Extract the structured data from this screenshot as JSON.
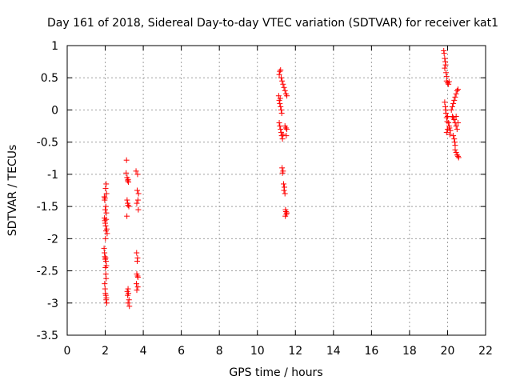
{
  "chart_data": {
    "type": "scatter",
    "title": "Day 161 of 2018, Sidereal Day-to-day VTEC variation (SDTVAR) for receiver kat1",
    "xlabel": "GPS time / hours",
    "ylabel": "SDTVAR / TECUs",
    "xlim": [
      0,
      22
    ],
    "ylim": [
      -3.5,
      1
    ],
    "xticks": [
      0,
      2,
      4,
      6,
      8,
      10,
      12,
      14,
      16,
      18,
      20,
      22
    ],
    "xtick_labels": [
      "0",
      "2",
      "4",
      "6",
      "8",
      "10",
      "12",
      "14",
      "16",
      "18",
      "20",
      "22"
    ],
    "yticks": [
      1,
      0.5,
      0,
      -0.5,
      -1,
      -1.5,
      -2,
      -2.5,
      -3,
      -3.5
    ],
    "ytick_labels": [
      "1",
      "0.5",
      "0",
      "-0.5",
      "-1",
      "-1.5",
      "-2",
      "-2.5",
      "-3",
      "-3.5"
    ],
    "grid": true,
    "marker": "+",
    "color": "#ff0000",
    "series": [
      {
        "name": "kat1",
        "points": [
          [
            1.95,
            -1.35
          ],
          [
            1.97,
            -1.4
          ],
          [
            1.99,
            -1.37
          ],
          [
            2.0,
            -1.55
          ],
          [
            2.02,
            -1.22
          ],
          [
            2.05,
            -1.15
          ],
          [
            2.07,
            -1.3
          ],
          [
            2.03,
            -1.5
          ],
          [
            2.06,
            -1.6
          ],
          [
            1.96,
            -1.68
          ],
          [
            1.98,
            -1.72
          ],
          [
            2.0,
            -1.76
          ],
          [
            2.02,
            -1.8
          ],
          [
            2.05,
            -1.7
          ],
          [
            2.08,
            -1.85
          ],
          [
            2.1,
            -1.92
          ],
          [
            2.04,
            -1.88
          ],
          [
            2.01,
            -2.0
          ],
          [
            1.94,
            -2.15
          ],
          [
            1.96,
            -2.22
          ],
          [
            1.98,
            -2.28
          ],
          [
            2.0,
            -2.32
          ],
          [
            2.02,
            -2.3
          ],
          [
            2.04,
            -2.35
          ],
          [
            2.06,
            -2.42
          ],
          [
            2.01,
            -2.45
          ],
          [
            2.03,
            -2.55
          ],
          [
            2.05,
            -2.62
          ],
          [
            1.97,
            -2.7
          ],
          [
            1.99,
            -2.78
          ],
          [
            2.01,
            -2.85
          ],
          [
            2.03,
            -2.88
          ],
          [
            2.05,
            -2.95
          ],
          [
            2.08,
            -3.0
          ],
          [
            2.06,
            -2.92
          ],
          [
            3.12,
            -0.78
          ],
          [
            3.1,
            -0.98
          ],
          [
            3.15,
            -1.05
          ],
          [
            3.18,
            -1.1
          ],
          [
            3.22,
            -1.12
          ],
          [
            3.2,
            -1.08
          ],
          [
            3.15,
            -1.4
          ],
          [
            3.18,
            -1.45
          ],
          [
            3.2,
            -1.48
          ],
          [
            3.24,
            -1.5
          ],
          [
            3.14,
            -1.65
          ],
          [
            3.2,
            -2.78
          ],
          [
            3.22,
            -2.85
          ],
          [
            3.18,
            -2.88
          ],
          [
            3.25,
            -2.95
          ],
          [
            3.2,
            -3.0
          ],
          [
            3.27,
            -3.05
          ],
          [
            3.16,
            -2.82
          ],
          [
            3.62,
            -0.95
          ],
          [
            3.7,
            -1.0
          ],
          [
            3.68,
            -1.25
          ],
          [
            3.75,
            -1.3
          ],
          [
            3.72,
            -1.4
          ],
          [
            3.66,
            -1.45
          ],
          [
            3.74,
            -1.55
          ],
          [
            3.65,
            -2.22
          ],
          [
            3.7,
            -2.3
          ],
          [
            3.68,
            -2.35
          ],
          [
            3.66,
            -2.55
          ],
          [
            3.72,
            -2.6
          ],
          [
            3.7,
            -2.58
          ],
          [
            3.64,
            -2.7
          ],
          [
            3.71,
            -2.75
          ],
          [
            3.66,
            -2.8
          ],
          [
            11.15,
            0.55
          ],
          [
            11.18,
            0.6
          ],
          [
            11.22,
            0.62
          ],
          [
            11.25,
            0.5
          ],
          [
            11.3,
            0.45
          ],
          [
            11.35,
            0.4
          ],
          [
            11.4,
            0.35
          ],
          [
            11.45,
            0.3
          ],
          [
            11.5,
            0.25
          ],
          [
            11.55,
            0.22
          ],
          [
            11.12,
            0.22
          ],
          [
            11.15,
            0.15
          ],
          [
            11.18,
            0.1
          ],
          [
            11.22,
            0.05
          ],
          [
            11.25,
            0.0
          ],
          [
            11.28,
            -0.05
          ],
          [
            11.2,
            0.18
          ],
          [
            11.15,
            -0.2
          ],
          [
            11.18,
            -0.25
          ],
          [
            11.22,
            -0.3
          ],
          [
            11.25,
            -0.35
          ],
          [
            11.28,
            -0.4
          ],
          [
            11.32,
            -0.45
          ],
          [
            11.35,
            -0.38
          ],
          [
            11.45,
            -0.25
          ],
          [
            11.5,
            -0.28
          ],
          [
            11.55,
            -0.3
          ],
          [
            11.52,
            -0.4
          ],
          [
            11.3,
            -0.9
          ],
          [
            11.35,
            -0.95
          ],
          [
            11.32,
            -0.98
          ],
          [
            11.38,
            -1.15
          ],
          [
            11.42,
            -1.2
          ],
          [
            11.4,
            -1.25
          ],
          [
            11.45,
            -1.3
          ],
          [
            11.48,
            -1.55
          ],
          [
            11.5,
            -1.58
          ],
          [
            11.52,
            -1.62
          ],
          [
            11.55,
            -1.6
          ],
          [
            11.47,
            -1.65
          ],
          [
            19.8,
            0.92
          ],
          [
            19.82,
            0.88
          ],
          [
            19.85,
            0.8
          ],
          [
            19.88,
            0.75
          ],
          [
            19.9,
            0.7
          ],
          [
            19.85,
            0.65
          ],
          [
            19.92,
            0.58
          ],
          [
            19.95,
            0.52
          ],
          [
            19.95,
            0.45
          ],
          [
            20.0,
            0.42
          ],
          [
            20.05,
            0.4
          ],
          [
            20.08,
            0.44
          ],
          [
            19.85,
            0.12
          ],
          [
            19.88,
            0.05
          ],
          [
            19.9,
            0.0
          ],
          [
            19.92,
            -0.05
          ],
          [
            19.95,
            -0.12
          ],
          [
            19.98,
            -0.18
          ],
          [
            20.0,
            -0.1
          ],
          [
            20.05,
            -0.2
          ],
          [
            20.1,
            -0.28
          ],
          [
            20.15,
            -0.32
          ],
          [
            20.12,
            -0.38
          ],
          [
            20.08,
            -0.25
          ],
          [
            20.0,
            -0.3
          ],
          [
            19.95,
            -0.35
          ],
          [
            20.2,
            0.0
          ],
          [
            20.25,
            0.05
          ],
          [
            20.3,
            0.1
          ],
          [
            20.35,
            0.15
          ],
          [
            20.4,
            0.2
          ],
          [
            20.45,
            0.25
          ],
          [
            20.5,
            0.3
          ],
          [
            20.55,
            0.32
          ],
          [
            20.25,
            -0.1
          ],
          [
            20.3,
            -0.12
          ],
          [
            20.35,
            -0.15
          ],
          [
            20.4,
            -0.2
          ],
          [
            20.45,
            -0.25
          ],
          [
            20.5,
            -0.3
          ],
          [
            20.55,
            -0.2
          ],
          [
            20.45,
            -0.1
          ],
          [
            20.35,
            -0.45
          ],
          [
            20.38,
            -0.5
          ],
          [
            20.4,
            -0.55
          ],
          [
            20.3,
            -0.4
          ],
          [
            20.4,
            -0.62
          ],
          [
            20.45,
            -0.66
          ],
          [
            20.5,
            -0.7
          ],
          [
            20.55,
            -0.72
          ],
          [
            20.58,
            -0.74
          ]
        ]
      }
    ]
  }
}
